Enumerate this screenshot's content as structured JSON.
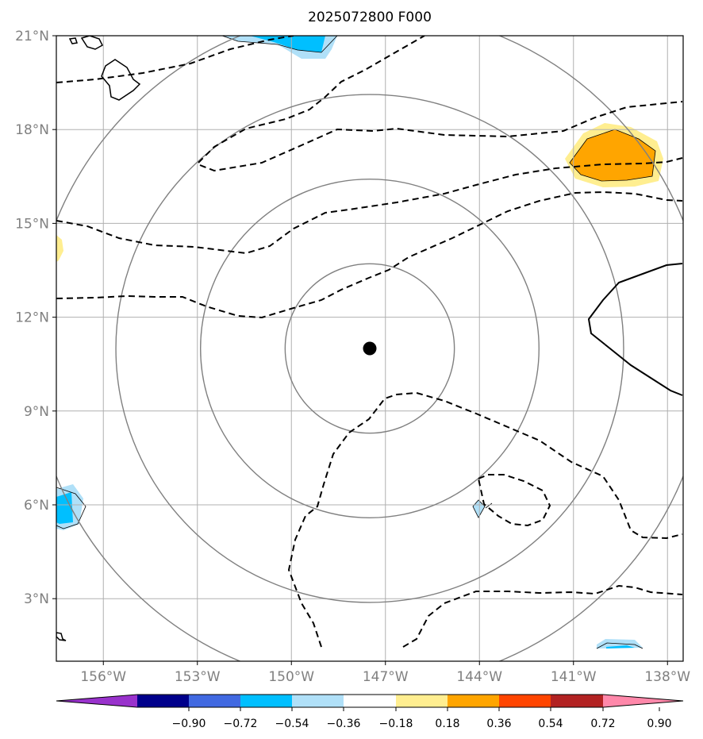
{
  "title": "2025072800 F000",
  "map": {
    "lon_range": [
      -157.5,
      -137.5
    ],
    "lat_range": [
      1,
      21
    ],
    "lon_ticks": [
      {
        "value": -156,
        "label": "156°W"
      },
      {
        "value": -153,
        "label": "153°W"
      },
      {
        "value": -150,
        "label": "150°W"
      },
      {
        "value": -147,
        "label": "147°W"
      },
      {
        "value": -144,
        "label": "144°W"
      },
      {
        "value": -141,
        "label": "141°W"
      },
      {
        "value": -138,
        "label": "138°W"
      }
    ],
    "lat_ticks": [
      {
        "value": 21,
        "label": "21°N"
      },
      {
        "value": 18,
        "label": "18°N"
      },
      {
        "value": 15,
        "label": "15°N"
      },
      {
        "value": 12,
        "label": "12°N"
      },
      {
        "value": 9,
        "label": "9°N"
      },
      {
        "value": 6,
        "label": "6°N"
      },
      {
        "value": 3,
        "label": "3°N"
      }
    ],
    "grid": true,
    "center": {
      "lon": -147.5,
      "lat": 11.0
    },
    "range_rings_deg": [
      2.7,
      5.4,
      8.1,
      10.8
    ],
    "colors": {
      "grid": "#b0b0b0",
      "ring": "#808080",
      "contour": "#000000"
    }
  },
  "colorbar": {
    "colors": [
      "#9932cc",
      "#00008b",
      "#4169e1",
      "#00bfff",
      "#b0e0f8",
      "#ffffff",
      "#ffee90",
      "#ffa500",
      "#ff4500",
      "#b22222",
      "#ff88aa"
    ],
    "tick_labels": [
      "−0.90",
      "−0.72",
      "−0.54",
      "−0.36",
      "−0.18",
      "0.18",
      "0.36",
      "0.54",
      "0.72",
      "0.90"
    ]
  }
}
